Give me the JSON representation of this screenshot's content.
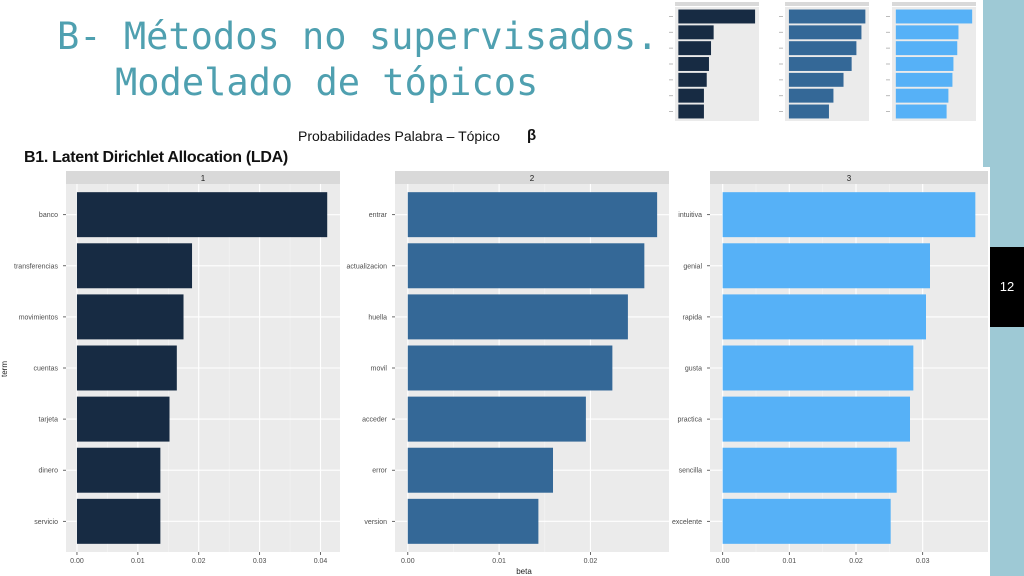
{
  "slide": {
    "title_line1": "B- Métodos no supervisados.",
    "title_line2": "Modelado de tópicos",
    "subtitle": "Probabilidades Palabra – Tópico",
    "beta_symbol": "β",
    "section_heading": "B1. Latent Dirichlet Allocation (LDA)",
    "page_number": "12"
  },
  "chart_data": {
    "type": "bar",
    "orientation": "horizontal",
    "xlabel": "beta",
    "ylabel": "term",
    "grid": true,
    "panels": [
      {
        "strip": "1",
        "color": "#172b43",
        "terms": [
          "banco",
          "transferencias",
          "movimientos",
          "cuentas",
          "tarjeta",
          "dinero",
          "servicio"
        ],
        "values": [
          0.0411,
          0.0189,
          0.0175,
          0.0164,
          0.0152,
          0.0137,
          0.0137
        ],
        "xlim": [
          -0.0018,
          0.0432
        ],
        "ticks": [
          0,
          0.01,
          0.02,
          0.03,
          0.04
        ],
        "tick_labels": [
          "0.00",
          "0.01",
          "0.02",
          "0.03",
          "0.04"
        ]
      },
      {
        "strip": "2",
        "color": "#346897",
        "terms": [
          "entrar",
          "actualizacion",
          "huella",
          "movil",
          "acceder",
          "error",
          "version"
        ],
        "values": [
          0.0273,
          0.0259,
          0.0241,
          0.0224,
          0.0195,
          0.0159,
          0.0143
        ],
        "xlim": [
          -0.0014,
          0.0286
        ],
        "ticks": [
          0,
          0.01,
          0.02
        ],
        "tick_labels": [
          "0.00",
          "0.01",
          "0.02"
        ]
      },
      {
        "strip": "3",
        "color": "#56b1f7",
        "terms": [
          "intuitiva",
          "genial",
          "rapida",
          "gusta",
          "practica",
          "sencilla",
          "excelente"
        ],
        "values": [
          0.0379,
          0.0311,
          0.0305,
          0.0286,
          0.0281,
          0.0261,
          0.0252
        ],
        "xlim": [
          -0.0019,
          0.0398
        ],
        "ticks": [
          0,
          0.01,
          0.02,
          0.03
        ],
        "tick_labels": [
          "0.00",
          "0.01",
          "0.02",
          "0.03"
        ]
      }
    ]
  }
}
